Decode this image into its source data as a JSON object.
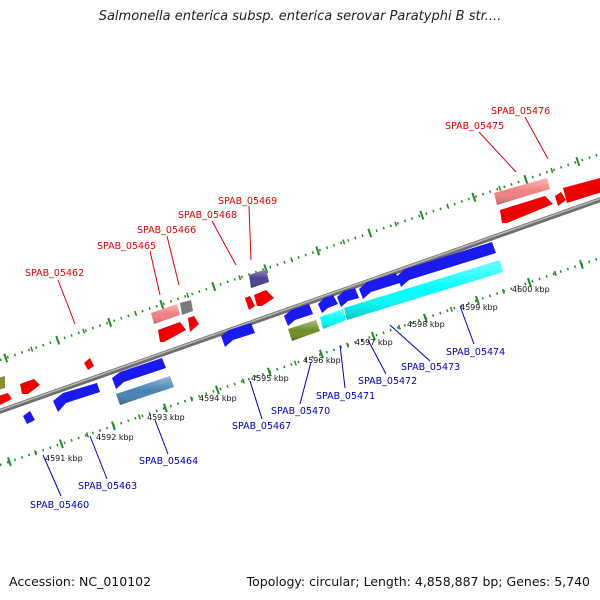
{
  "title": "Salmonella enterica subsp. enterica serovar Paratyphi B str....",
  "footer": {
    "accession": "Accession: NC_010102",
    "topology": "Topology: circular; Length: 4,858,887 bp; Genes: 5,740"
  },
  "kbp_labels": [
    "4591 kbp",
    "4592 kbp",
    "4593 kbp",
    "4594 kbp",
    "4595 kbp",
    "4596 kbp",
    "4597 kbp",
    "4598 kbp",
    "4599 kbp",
    "4600 kbp"
  ],
  "forward_labels": [
    "SPAB_05462",
    "SPAB_05465",
    "SPAB_05466",
    "SPAB_05468",
    "SPAB_05469",
    "SPAB_05475",
    "SPAB_05476"
  ],
  "reverse_labels": [
    "SPAB_05460",
    "SPAB_05463",
    "SPAB_05464",
    "SPAB_05467",
    "SPAB_05470",
    "SPAB_05471",
    "SPAB_05472",
    "SPAB_05473",
    "SPAB_05474"
  ],
  "colors": {
    "forward_gene": "#ff0000",
    "forward_light": "#f08080",
    "reverse_gene": "#0000ee",
    "reverse_cyan": "#00ffff",
    "reverse_steel": "#4682b4",
    "olive": "#6b8e23",
    "gray": "#808080",
    "purple": "#483d8b",
    "backbone": "#808080",
    "tick": "#228b22",
    "forward_label": "#dd0000",
    "reverse_label": "#0000bb"
  }
}
